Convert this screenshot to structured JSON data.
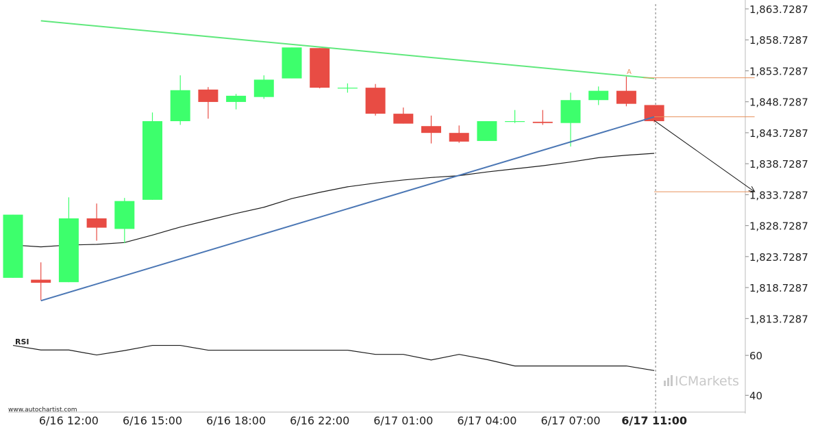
{
  "chart_data": {
    "type": "candlestick",
    "price_panel": {
      "ylim": [
        1811.0,
        1864.5
      ],
      "y_ticks": [
        "1,863.7287",
        "1,858.7287",
        "1,853.7287",
        "1,848.7287",
        "1,843.7287",
        "1,838.7287",
        "1,833.7287",
        "1,828.7287",
        "1,823.7287",
        "1,818.7287",
        "1,813.7287"
      ],
      "y_tick_values": [
        1863.7287,
        1858.7287,
        1853.7287,
        1848.7287,
        1843.7287,
        1838.7287,
        1833.7287,
        1828.7287,
        1823.7287,
        1818.7287,
        1813.7287
      ],
      "candles": [
        {
          "o": 1820.3,
          "h": 1830.5,
          "l": 1820.3,
          "c": 1830.5
        },
        {
          "o": 1820.0,
          "h": 1822.8,
          "l": 1816.7,
          "c": 1819.5
        },
        {
          "o": 1819.6,
          "h": 1833.3,
          "l": 1819.6,
          "c": 1829.9
        },
        {
          "o": 1829.9,
          "h": 1832.3,
          "l": 1826.3,
          "c": 1828.4
        },
        {
          "o": 1828.2,
          "h": 1833.2,
          "l": 1825.9,
          "c": 1832.7
        },
        {
          "o": 1832.9,
          "h": 1847.0,
          "l": 1832.9,
          "c": 1845.6
        },
        {
          "o": 1845.6,
          "h": 1853.0,
          "l": 1845.0,
          "c": 1850.6
        },
        {
          "o": 1850.7,
          "h": 1851.1,
          "l": 1846.0,
          "c": 1848.7
        },
        {
          "o": 1848.7,
          "h": 1850.0,
          "l": 1847.5,
          "c": 1849.7
        },
        {
          "o": 1849.5,
          "h": 1853.0,
          "l": 1849.2,
          "c": 1852.3
        },
        {
          "o": 1852.5,
          "h": 1857.5,
          "l": 1852.5,
          "c": 1857.5
        },
        {
          "o": 1857.4,
          "h": 1857.4,
          "l": 1850.9,
          "c": 1851.0
        },
        {
          "o": 1851.0,
          "h": 1851.7,
          "l": 1850.2,
          "c": 1851.0
        },
        {
          "o": 1851.0,
          "h": 1851.6,
          "l": 1846.5,
          "c": 1846.8
        },
        {
          "o": 1846.8,
          "h": 1847.8,
          "l": 1845.2,
          "c": 1845.2
        },
        {
          "o": 1844.8,
          "h": 1846.5,
          "l": 1842.0,
          "c": 1843.7
        },
        {
          "o": 1843.7,
          "h": 1844.9,
          "l": 1842.1,
          "c": 1842.3
        },
        {
          "o": 1842.4,
          "h": 1845.6,
          "l": 1842.4,
          "c": 1845.6
        },
        {
          "o": 1845.6,
          "h": 1847.4,
          "l": 1845.3,
          "c": 1845.6
        },
        {
          "o": 1845.5,
          "h": 1847.4,
          "l": 1845.0,
          "c": 1845.3
        },
        {
          "o": 1845.3,
          "h": 1850.2,
          "l": 1841.5,
          "c": 1849.0
        },
        {
          "o": 1849.0,
          "h": 1851.2,
          "l": 1848.2,
          "c": 1850.5
        },
        {
          "o": 1850.5,
          "h": 1852.8,
          "l": 1848.0,
          "c": 1848.4
        },
        {
          "o": 1848.2,
          "h": 1848.2,
          "l": 1845.4,
          "c": 1845.6
        }
      ],
      "moving_average": [
        1825.6,
        1825.3,
        1825.6,
        1825.7,
        1826.0,
        1827.2,
        1828.5,
        1829.6,
        1830.7,
        1831.7,
        1833.1,
        1834.1,
        1835.0,
        1835.6,
        1836.1,
        1836.5,
        1836.8,
        1837.4,
        1837.9,
        1838.4,
        1839.0,
        1839.7,
        1840.1,
        1840.4
      ],
      "resistance_line": {
        "from": [
          1,
          1861.8
        ],
        "to": [
          23,
          1852.5
        ]
      },
      "support_line": {
        "from": [
          1,
          1816.6
        ],
        "to": [
          23,
          1846.3
        ]
      },
      "forecast_arrow": {
        "from": [
          23,
          1845.7
        ],
        "to": [
          26.6,
          1834.2
        ]
      },
      "levels": [
        {
          "value": 1852.6,
          "from_index": 22.6,
          "to_index": 26.6
        },
        {
          "value": 1846.3,
          "from_index": 23.0,
          "to_index": 26.6
        },
        {
          "value": 1834.2,
          "from_index": 23.0,
          "to_index": 26.6
        }
      ],
      "marker_label": "A",
      "marker_at": [
        22.1,
        1853.2
      ]
    },
    "rsi_panel": {
      "label": "RSI",
      "ylim": [
        35,
        70
      ],
      "y_ticks": [
        "60",
        "40"
      ],
      "y_tick_values": [
        60,
        40
      ],
      "values": [
        65.0,
        62.7,
        62.7,
        60.2,
        62.4,
        65.0,
        65.0,
        62.6,
        62.6,
        62.6,
        62.6,
        62.6,
        62.6,
        60.5,
        60.5,
        57.7,
        60.5,
        57.9,
        54.7,
        54.7,
        54.7,
        54.7,
        54.7,
        52.4
      ]
    },
    "x_ticks": [
      {
        "label": "6/16 12:00",
        "index": 2,
        "bold": false
      },
      {
        "label": "6/16 15:00",
        "index": 5,
        "bold": false
      },
      {
        "label": "6/16 18:00",
        "index": 8,
        "bold": false
      },
      {
        "label": "6/16 22:00",
        "index": 11,
        "bold": false
      },
      {
        "label": "6/17 01:00",
        "index": 14,
        "bold": false
      },
      {
        "label": "6/17 04:00",
        "index": 17,
        "bold": false
      },
      {
        "label": "6/17 07:00",
        "index": 20,
        "bold": false
      },
      {
        "label": "6/17 11:00",
        "index": 23,
        "bold": true
      }
    ],
    "colors": {
      "bullish": "#3dff6c",
      "bearish": "#e84c44",
      "resistance": "#5fe87c",
      "support": "#4a76b4",
      "level": "#e8915a",
      "moving_average": "#1a1a1a",
      "rsi": "#1a1a1a"
    }
  },
  "footer": {
    "source": "www.autochartist.com",
    "watermark": "ICMarkets"
  }
}
